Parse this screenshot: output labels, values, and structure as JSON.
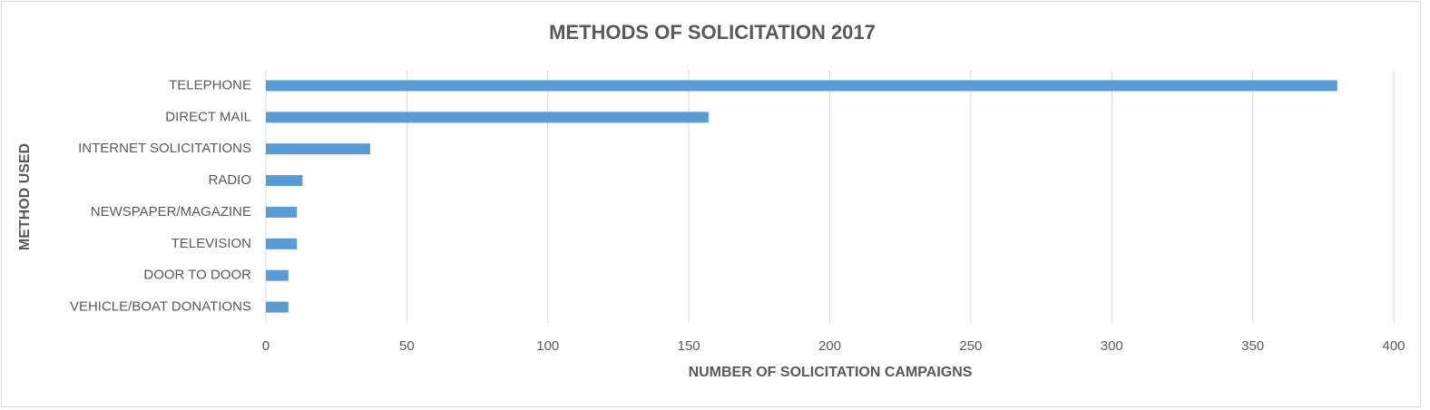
{
  "chart_data": {
    "type": "bar",
    "orientation": "horizontal",
    "title": "METHODS OF SOLICITATION 2017",
    "x_label": "NUMBER OF SOLICITATION CAMPAIGNS",
    "y_label": "METHOD USED",
    "categories": [
      "TELEPHONE",
      "DIRECT MAIL",
      "INTERNET SOLICITATIONS",
      "RADIO",
      "NEWSPAPER/MAGAZINE",
      "TELEVISION",
      "DOOR TO DOOR",
      "VEHICLE/BOAT DONATIONS"
    ],
    "values": [
      380,
      157,
      37,
      13,
      11,
      11,
      8,
      8
    ],
    "color": "#5b9bd5",
    "xlim": [
      0,
      400
    ],
    "xticks": [
      0,
      50,
      100,
      150,
      200,
      250,
      300,
      350,
      400
    ],
    "grid": true
  }
}
